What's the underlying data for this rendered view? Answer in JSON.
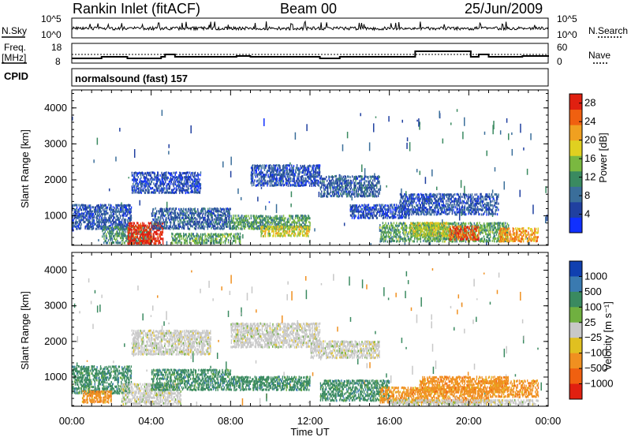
{
  "header": {
    "station": "Rankin Inlet (fitACF)",
    "beam": "Beam 00",
    "date": "25/Jun/2009"
  },
  "top_panel_labels": {
    "nsky": "N.Sky",
    "nsky_hi": "10^5",
    "nsky_lo": "10^0",
    "nsearch": "N.Search",
    "nsearch_hi": "10^5",
    "nsearch_lo": "10^0",
    "freq": "Freq.",
    "freq_unit": "[MHz]",
    "freq_hi": "18",
    "freq_lo": "8",
    "nave": "Nave",
    "nave_hi": "60",
    "nave_lo": "0",
    "cpid": "CPID",
    "cpid_value": "normalsound (fast) 157"
  },
  "colors": {
    "power": [
      "#1030ff",
      "#2040a0",
      "#3a6e9a",
      "#3a8a60",
      "#7ab840",
      "#e0d020",
      "#f0a020",
      "#f06010",
      "#e02010"
    ],
    "velocity": [
      "#1040b0",
      "#3a7ab0",
      "#3a8a60",
      "#70b040",
      "#c8c8c8",
      "#e0c020",
      "#f09020",
      "#f06010",
      "#e02010"
    ]
  },
  "chart_data": [
    {
      "type": "heatmap",
      "panel": "power",
      "ylabel": "Slant Range [km]",
      "xlabel": "",
      "ylim": [
        180,
        4500
      ],
      "xlim": [
        "00:00",
        "24:00"
      ],
      "y_ticks": [
        "1000",
        "2000",
        "3000",
        "4000"
      ],
      "x_ticks": [
        "00:00",
        "04:00",
        "08:00",
        "12:00",
        "16:00",
        "20:00",
        "00:00"
      ],
      "colorbar": {
        "label": "Power [dB]",
        "ticks": [
          "4",
          "8",
          "12",
          "16",
          "20",
          "24",
          "28"
        ],
        "range": [
          0,
          30
        ]
      },
      "regions": [
        {
          "t": [
            0.0,
            3.0
          ],
          "r": [
            600,
            1300
          ],
          "v": 6
        },
        {
          "t": [
            1.5,
            4.0
          ],
          "r": [
            200,
            700
          ],
          "v": 11
        },
        {
          "t": [
            2.8,
            4.6
          ],
          "r": [
            190,
            800
          ],
          "v": 29
        },
        {
          "t": [
            3.0,
            6.5
          ],
          "r": [
            1600,
            2200
          ],
          "v": 5
        },
        {
          "t": [
            4.0,
            8.0
          ],
          "r": [
            600,
            1200
          ],
          "v": 7
        },
        {
          "t": [
            5.0,
            8.5
          ],
          "r": [
            200,
            500
          ],
          "v": 13
        },
        {
          "t": [
            8.0,
            12.0
          ],
          "r": [
            600,
            1000
          ],
          "v": 12
        },
        {
          "t": [
            9.0,
            12.5
          ],
          "r": [
            1800,
            2400
          ],
          "v": 6
        },
        {
          "t": [
            9.5,
            12.0
          ],
          "r": [
            400,
            700
          ],
          "v": 18
        },
        {
          "t": [
            12.5,
            15.5
          ],
          "r": [
            1500,
            2100
          ],
          "v": 7
        },
        {
          "t": [
            14.0,
            17.0
          ],
          "r": [
            900,
            1300
          ],
          "v": 5
        },
        {
          "t": [
            15.5,
            22.0
          ],
          "r": [
            250,
            800
          ],
          "v": 13
        },
        {
          "t": [
            16.5,
            21.5
          ],
          "r": [
            1000,
            1600
          ],
          "v": 6
        },
        {
          "t": [
            19.0,
            20.5
          ],
          "r": [
            300,
            700
          ],
          "v": 26
        },
        {
          "t": [
            21.5,
            23.5
          ],
          "r": [
            250,
            650
          ],
          "v": 22
        },
        {
          "t": [
            17.0,
            19.0
          ],
          "r": [
            400,
            800
          ],
          "v": 17
        }
      ]
    },
    {
      "type": "heatmap",
      "panel": "velocity",
      "ylabel": "Slant Range [km]",
      "xlabel": "Time UT",
      "ylim": [
        180,
        4500
      ],
      "xlim": [
        "00:00",
        "24:00"
      ],
      "y_ticks": [
        "1000",
        "2000",
        "3000",
        "4000"
      ],
      "x_ticks": [
        "00:00",
        "04:00",
        "08:00",
        "12:00",
        "16:00",
        "20:00",
        "00:00"
      ],
      "colorbar": {
        "label": "Velocity [m s⁻¹]",
        "ticks": [
          "1000",
          "500",
          "100",
          "25",
          "−25",
          "−100",
          "−500",
          "−1000"
        ]
      },
      "regions": [
        {
          "t": [
            0.0,
            3.0
          ],
          "r": [
            500,
            1300
          ],
          "v": "100"
        },
        {
          "t": [
            0.5,
            2.0
          ],
          "r": [
            250,
            600
          ],
          "v": "-100"
        },
        {
          "t": [
            2.5,
            5.5
          ],
          "r": [
            200,
            800
          ],
          "v": "25"
        },
        {
          "t": [
            3.0,
            7.0
          ],
          "r": [
            1600,
            2300
          ],
          "v": "25"
        },
        {
          "t": [
            4.0,
            8.0
          ],
          "r": [
            600,
            1200
          ],
          "v": "100"
        },
        {
          "t": [
            8.0,
            12.5
          ],
          "r": [
            1800,
            2500
          ],
          "v": "25"
        },
        {
          "t": [
            8.0,
            12.0
          ],
          "r": [
            600,
            1000
          ],
          "v": "100"
        },
        {
          "t": [
            12.0,
            15.5
          ],
          "r": [
            1500,
            2000
          ],
          "v": "25"
        },
        {
          "t": [
            12.5,
            16.0
          ],
          "r": [
            300,
            900
          ],
          "v": "100"
        },
        {
          "t": [
            15.5,
            21.0
          ],
          "r": [
            250,
            700
          ],
          "v": "-100"
        },
        {
          "t": [
            17.5,
            22.0
          ],
          "r": [
            550,
            1000
          ],
          "v": "-100"
        },
        {
          "t": [
            16.0,
            23.5
          ],
          "r": [
            190,
            350
          ],
          "v": "25"
        },
        {
          "t": [
            21.0,
            23.5
          ],
          "r": [
            400,
            900
          ],
          "v": "-100"
        }
      ]
    }
  ]
}
